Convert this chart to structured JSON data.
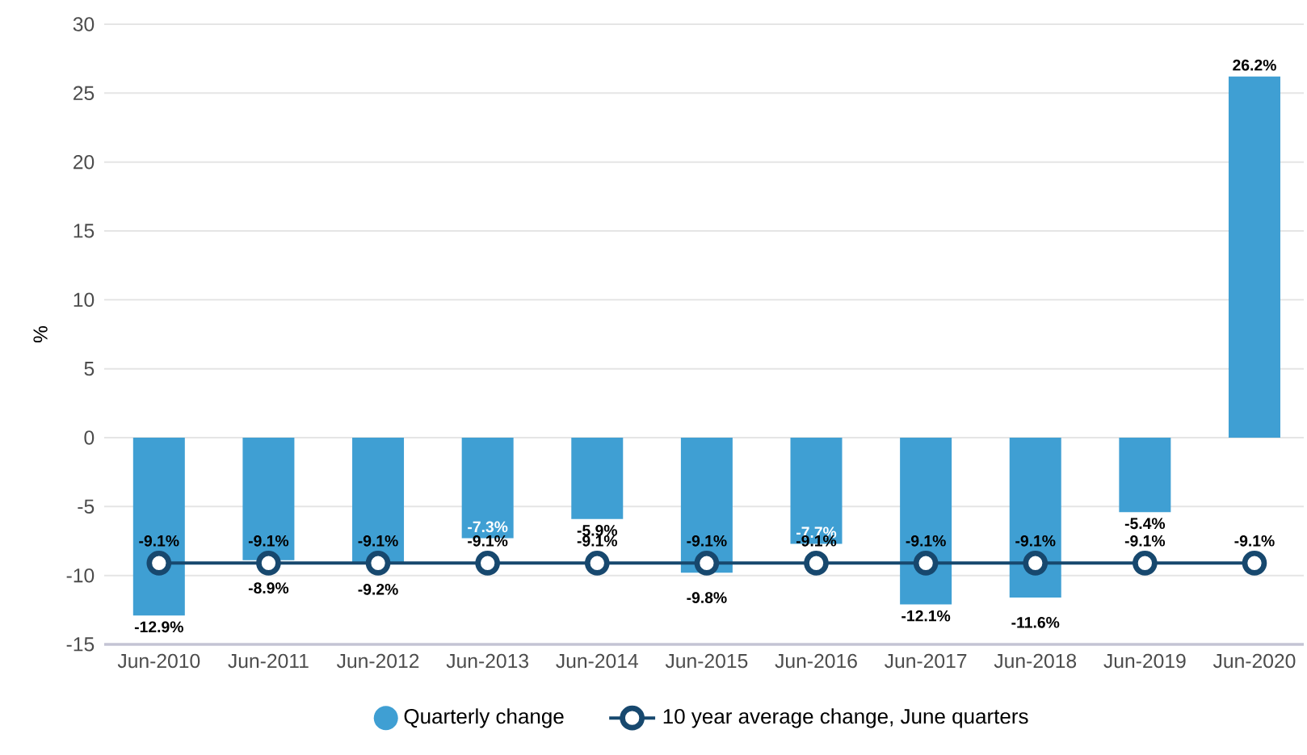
{
  "chart_data": {
    "type": "bar",
    "ylabel": "%",
    "categories": [
      "Jun-2010",
      "Jun-2011",
      "Jun-2012",
      "Jun-2013",
      "Jun-2014",
      "Jun-2015",
      "Jun-2016",
      "Jun-2017",
      "Jun-2018",
      "Jun-2019",
      "Jun-2020"
    ],
    "series": [
      {
        "name": "Quarterly change",
        "color": "#3f9fd3",
        "values": [
          -12.9,
          -8.9,
          -9.2,
          -7.3,
          -5.9,
          -9.8,
          -7.7,
          -12.1,
          -11.6,
          -5.4,
          26.2
        ],
        "value_labels": [
          "-12.9%",
          "-8.9%",
          "-9.2%",
          "-7.3%",
          "-5.9%",
          "-9.8%",
          "-7.7%",
          "-12.1%",
          "-11.6%",
          "-5.4%",
          "26.2%"
        ]
      },
      {
        "name": "10 year average change, June quarters",
        "type": "line",
        "color": "#17486e",
        "marker": "circle",
        "values": [
          -9.1,
          -9.1,
          -9.1,
          -9.1,
          -9.1,
          -9.1,
          -9.1,
          -9.1,
          -9.1,
          -9.1,
          -9.1
        ],
        "value_labels": [
          "-9.1%",
          "-9.1%",
          "-9.1%",
          "-9.1%",
          "-9.1%",
          "-9.1%",
          "-9.1%",
          "-9.1%",
          "-9.1%",
          "-9.1%",
          "-9.1%"
        ]
      }
    ],
    "ylim": [
      -15,
      30
    ],
    "yticks": [
      -15,
      -10,
      -5,
      0,
      5,
      10,
      15,
      20,
      25,
      30
    ],
    "grid": "y",
    "legend": "bottom"
  }
}
